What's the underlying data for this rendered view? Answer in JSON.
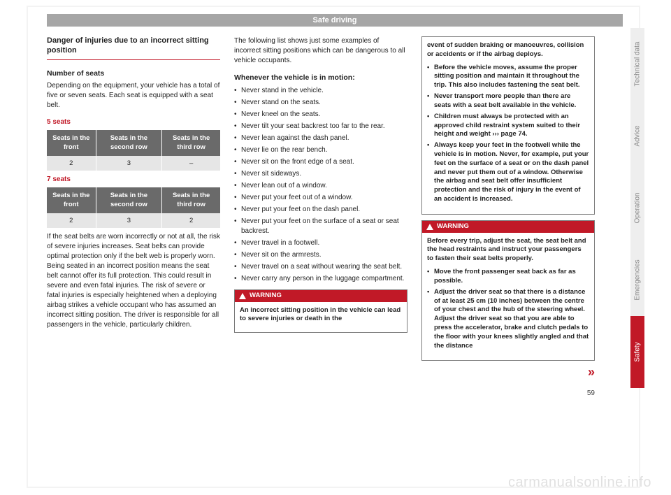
{
  "header": "Safe driving",
  "tabs": [
    "Technical data",
    "Advice",
    "Operation",
    "Emergencies",
    "Safety"
  ],
  "pageNumber": "59",
  "watermark": "carmanualsonline.info",
  "col1": {
    "title": "Danger of injuries due to an incorrect sitting position",
    "subhead": "Number of seats",
    "intro": "Depending on the equipment, your vehicle has a total of five or seven seats. Each seat is equipped with a seat belt.",
    "label5": "5 seats",
    "label7": "7 seats",
    "tableHeaders": [
      "Seats in the front",
      "Seats in the second row",
      "Seats in the third row"
    ],
    "row5": [
      "2",
      "3",
      "–"
    ],
    "row7": [
      "2",
      "3",
      "2"
    ],
    "para": "If the seat belts are worn incorrectly or not at all, the risk of severe injuries increases. Seat belts can provide optimal protection only if the belt web is properly worn. Being seated in an incorrect position means the seat belt cannot offer its full protection. This could result in severe and even fatal injuries. The risk of severe or fatal injuries is especially heightened when a deploying airbag strikes a vehicle occupant who has assumed an incorrect sitting position. The driver is responsible for all passengers in the vehicle, particularly children."
  },
  "col2": {
    "intro": "The following list shows just some examples of incorrect sitting positions which can be dangerous to all vehicle occupants.",
    "sub": "Whenever the vehicle is in motion:",
    "items": [
      "Never stand in the vehicle.",
      "Never stand on the seats.",
      "Never kneel on the seats.",
      "Never tilt your seat backrest too far to the rear.",
      "Never lean against the dash panel.",
      "Never lie on the rear bench.",
      "Never sit on the front edge of a seat.",
      "Never sit sideways.",
      "Never lean out of a window.",
      "Never put your feet out of a window.",
      "Never put your feet on the dash panel.",
      "Never put your feet on the surface of a seat or seat backrest.",
      "Never travel in a footwell.",
      "Never sit on the armrests.",
      "Never travel on a seat without wearing the seat belt.",
      "Never carry any person in the luggage compartment."
    ],
    "warnLabel": "WARNING",
    "warnText": "An incorrect sitting position in the vehicle can lead to severe injuries or death in the"
  },
  "col3": {
    "cont1": "event of sudden braking or manoeuvres, collision or accidents or if the airbag deploys.",
    "contItems": [
      "Before the vehicle moves, assume the proper sitting position and maintain it throughout the trip. This also includes fastening the seat belt.",
      "Never transport more people than there are seats with a seat belt available in the vehicle.",
      "Children must always be protected with an approved child restraint system suited to their height and weight ››› page 74.",
      "Always keep your feet in the footwell while the vehicle is in motion. Never, for example, put your feet on the surface of a seat or on the dash panel and never put them out of a window. Otherwise the airbag and seat belt offer insufficient protection and the risk of injury in the event of an accident is increased."
    ],
    "warnLabel": "WARNING",
    "warn2Lead": "Before every trip, adjust the seat, the seat belt and the head restraints and instruct your passengers to fasten their seat belts properly.",
    "warn2Items": [
      "Move the front passenger seat back as far as possible.",
      "Adjust the driver seat so that there is a distance of at least 25 cm (10 inches) between the centre of your chest and the hub of the steering wheel. Adjust the driver seat so that you are able to press the accelerator, brake and clutch pedals to the floor with your knees slightly angled and that the distance"
    ],
    "continueMark": "»"
  }
}
